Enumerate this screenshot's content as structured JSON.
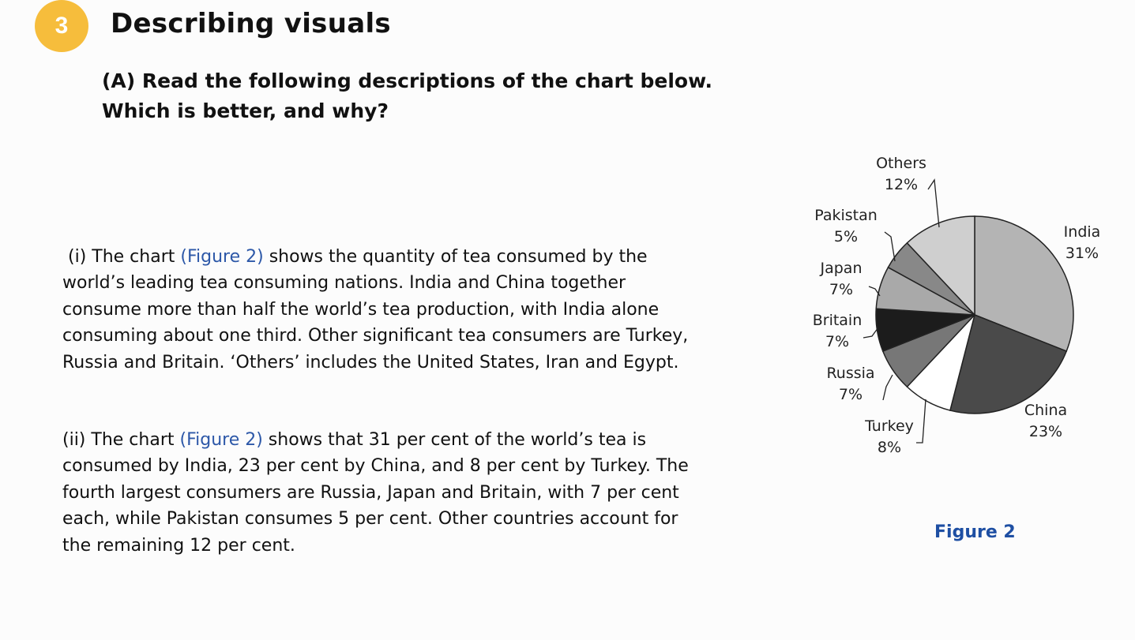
{
  "section": {
    "number": "3",
    "title": "Describing visuals"
  },
  "question": {
    "line1": "(A) Read the following descriptions of the chart below.",
    "line2": "Which is better, and why?"
  },
  "description_i": {
    "lead": "(i) The chart ",
    "figure_ref": "(Figure 2)",
    "text_1": " shows the quantity of tea consumed by the",
    "line2": "world’s leading tea consuming nations. India and China together",
    "line3": "consume more than half the world’s tea production, with India alone",
    "line4": "consuming about one third. Other significant tea consumers are Turkey,",
    "line5": "Russia and Britain. ‘Others’ includes the United States, Iran and Egypt."
  },
  "description_ii": {
    "lead": "(ii) The chart ",
    "figure_ref": "(Figure 2)",
    "text_1": " shows that 31 per cent of the world’s tea is",
    "line2": "consumed by India, 23 per cent by China, and 8 per cent by Turkey. The",
    "line3": "fourth largest consumers are Russia, Japan and Britain, with 7 per cent",
    "line4": "each, while Pakistan consumes 5 per cent. Other countries account for",
    "line5": "the remaining 12 per cent."
  },
  "figure_caption": "Figure 2",
  "chart_data": {
    "type": "pie",
    "title": "",
    "unit": "%",
    "slices": [
      {
        "label": "India",
        "value": 31,
        "value_label": "31%",
        "color": "#b4b4b4"
      },
      {
        "label": "China",
        "value": 23,
        "value_label": "23%",
        "color": "#4a4a4a"
      },
      {
        "label": "Turkey",
        "value": 8,
        "value_label": "8%",
        "color": "#ffffff"
      },
      {
        "label": "Russia",
        "value": 7,
        "value_label": "7%",
        "color": "#777777"
      },
      {
        "label": "Britain",
        "value": 7,
        "value_label": "7%",
        "color": "#1c1c1c"
      },
      {
        "label": "Japan",
        "value": 7,
        "value_label": "7%",
        "color": "#a9a9a9"
      },
      {
        "label": "Pakistan",
        "value": 5,
        "value_label": "5%",
        "color": "#888888"
      },
      {
        "label": "Others",
        "value": 12,
        "value_label": "12%",
        "color": "#cfcfcf"
      }
    ],
    "start": "12 o'clock",
    "direction": "clockwise"
  }
}
